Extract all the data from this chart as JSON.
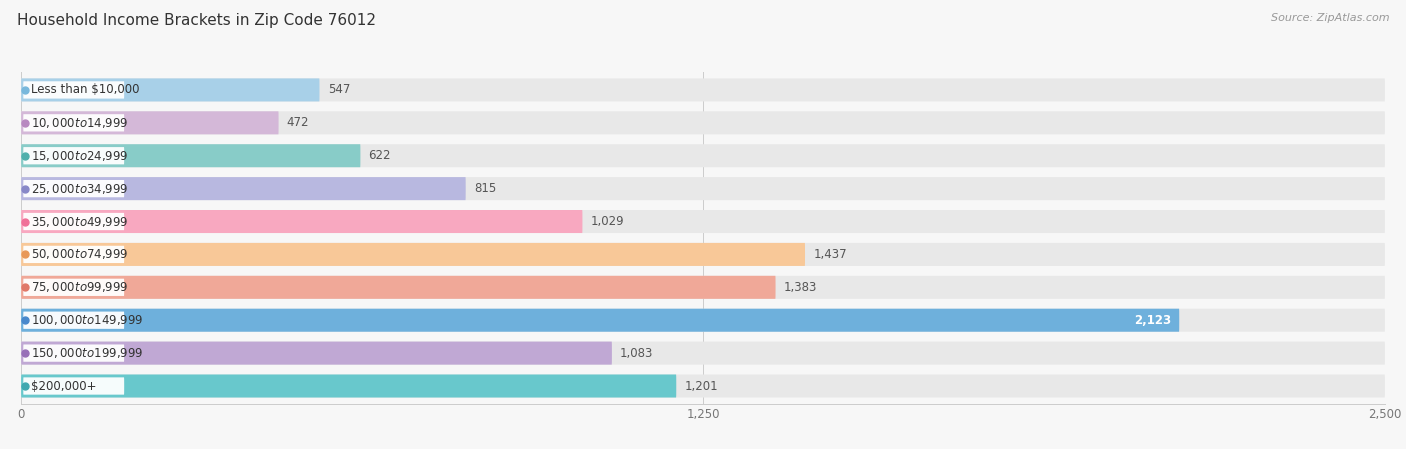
{
  "title": "Household Income Brackets in Zip Code 76012",
  "source": "Source: ZipAtlas.com",
  "categories": [
    "Less than $10,000",
    "$10,000 to $14,999",
    "$15,000 to $24,999",
    "$25,000 to $34,999",
    "$35,000 to $49,999",
    "$50,000 to $74,999",
    "$75,000 to $99,999",
    "$100,000 to $149,999",
    "$150,000 to $199,999",
    "$200,000+"
  ],
  "values": [
    547,
    472,
    622,
    815,
    1029,
    1437,
    1383,
    2123,
    1083,
    1201
  ],
  "bar_colors": [
    "#a8d0e8",
    "#d4b8d8",
    "#88ccc8",
    "#b8b8e0",
    "#f8a8c0",
    "#f8c898",
    "#f0a898",
    "#6eb0dc",
    "#c0a8d4",
    "#68c8cc"
  ],
  "dot_colors": [
    "#78b8dc",
    "#b888c0",
    "#50b0ac",
    "#8888c8",
    "#f07098",
    "#e89858",
    "#e07868",
    "#4888cc",
    "#9870b8",
    "#40a8b0"
  ],
  "xlim": [
    0,
    2500
  ],
  "xtick_values": [
    0,
    1250,
    2500
  ],
  "xtick_labels": [
    "0",
    "1,250",
    "2,500"
  ],
  "background_color": "#f7f7f7",
  "bar_bg_color": "#e8e8e8",
  "title_fontsize": 11,
  "label_fontsize": 8.5,
  "value_fontsize": 8.5,
  "bar_height": 0.7,
  "value_inside_color": "#ffffff",
  "value_outside_color": "#555555",
  "inside_threshold": 2000
}
